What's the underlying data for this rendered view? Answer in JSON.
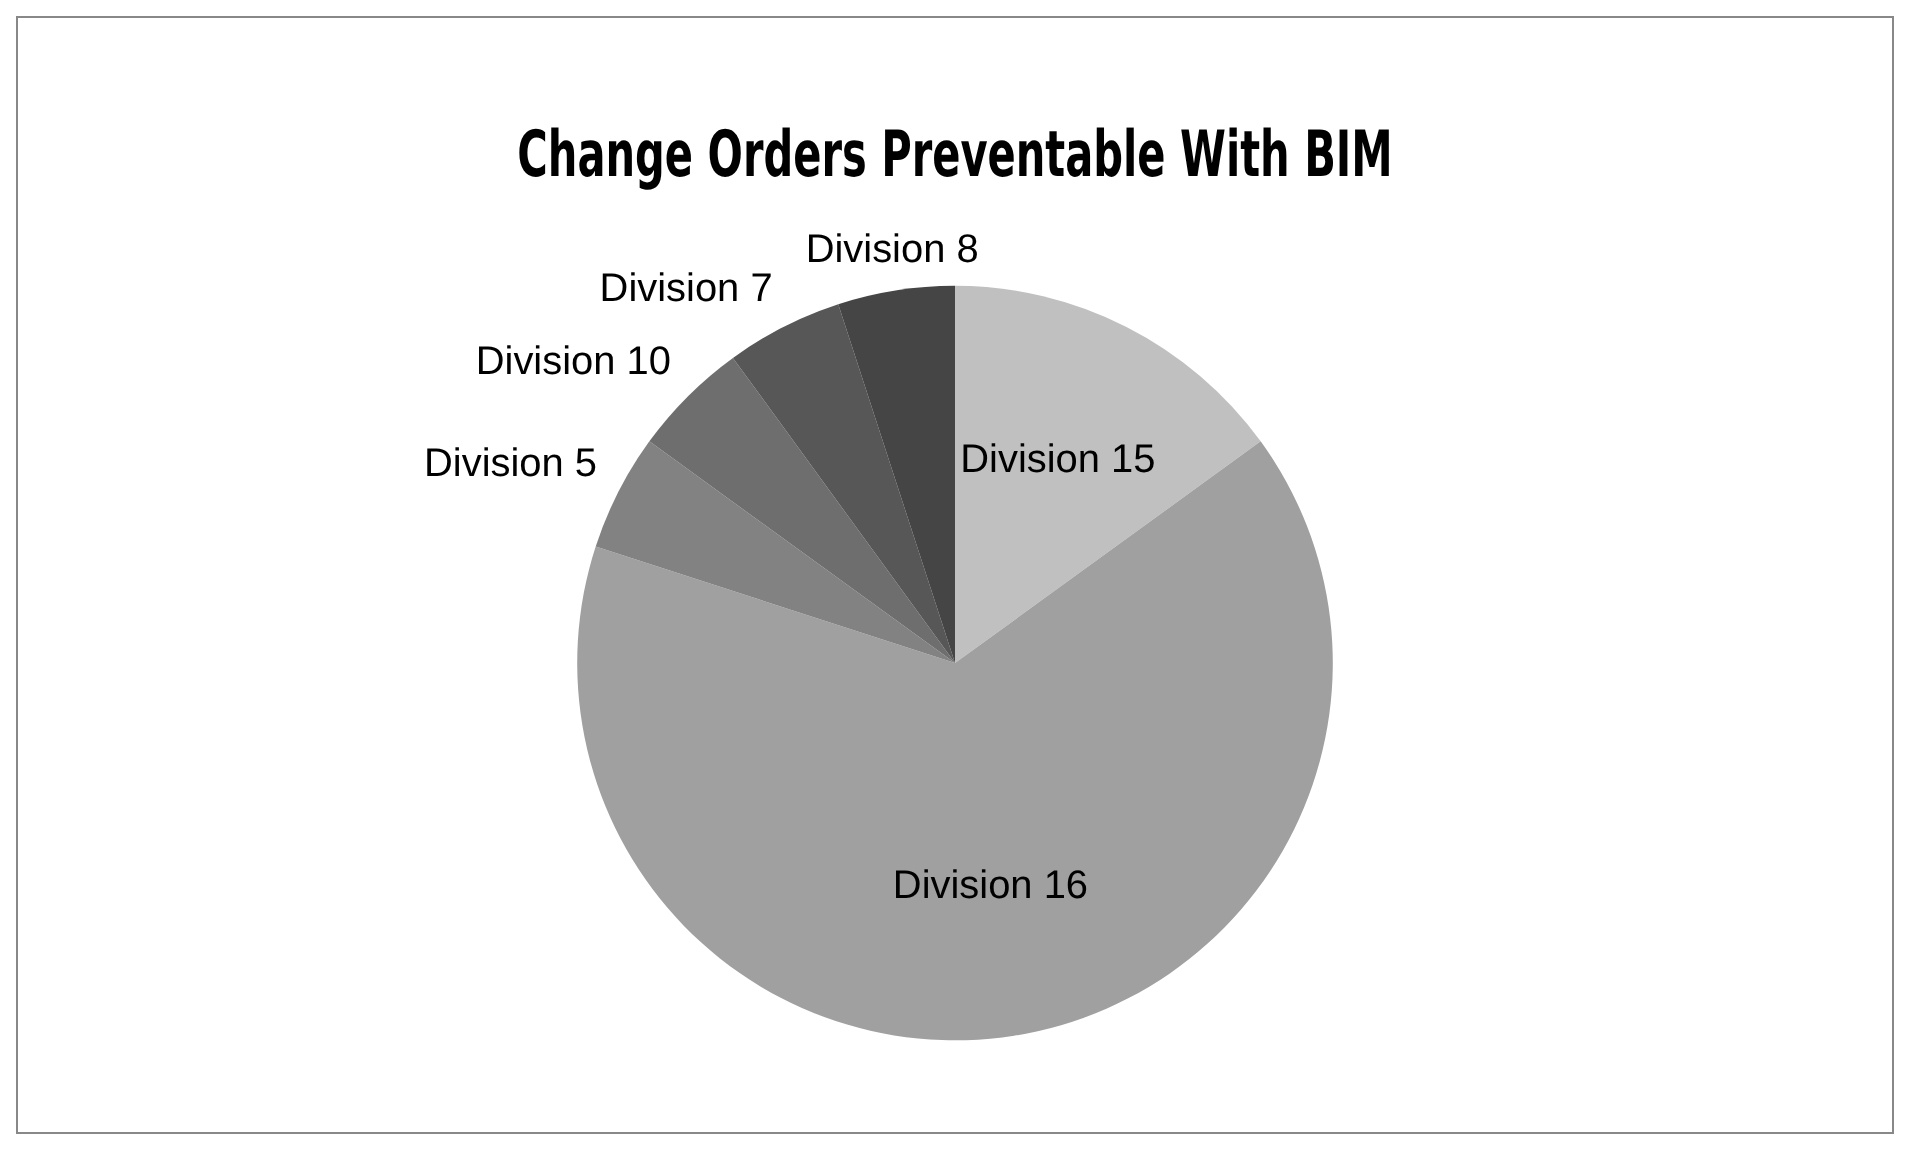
{
  "chart_data": {
    "type": "pie",
    "title": "Change Orders Preventable With BIM",
    "categories": [
      "Division 15",
      "Division 16",
      "Division 5",
      "Division 10",
      "Division 7",
      "Division 8"
    ],
    "values": [
      15,
      65,
      5,
      5,
      5,
      5
    ],
    "colors": [
      "#c0c0c0",
      "#a0a0a0",
      "#828282",
      "#6e6e6e",
      "#575757",
      "#454545"
    ],
    "legend": false
  }
}
